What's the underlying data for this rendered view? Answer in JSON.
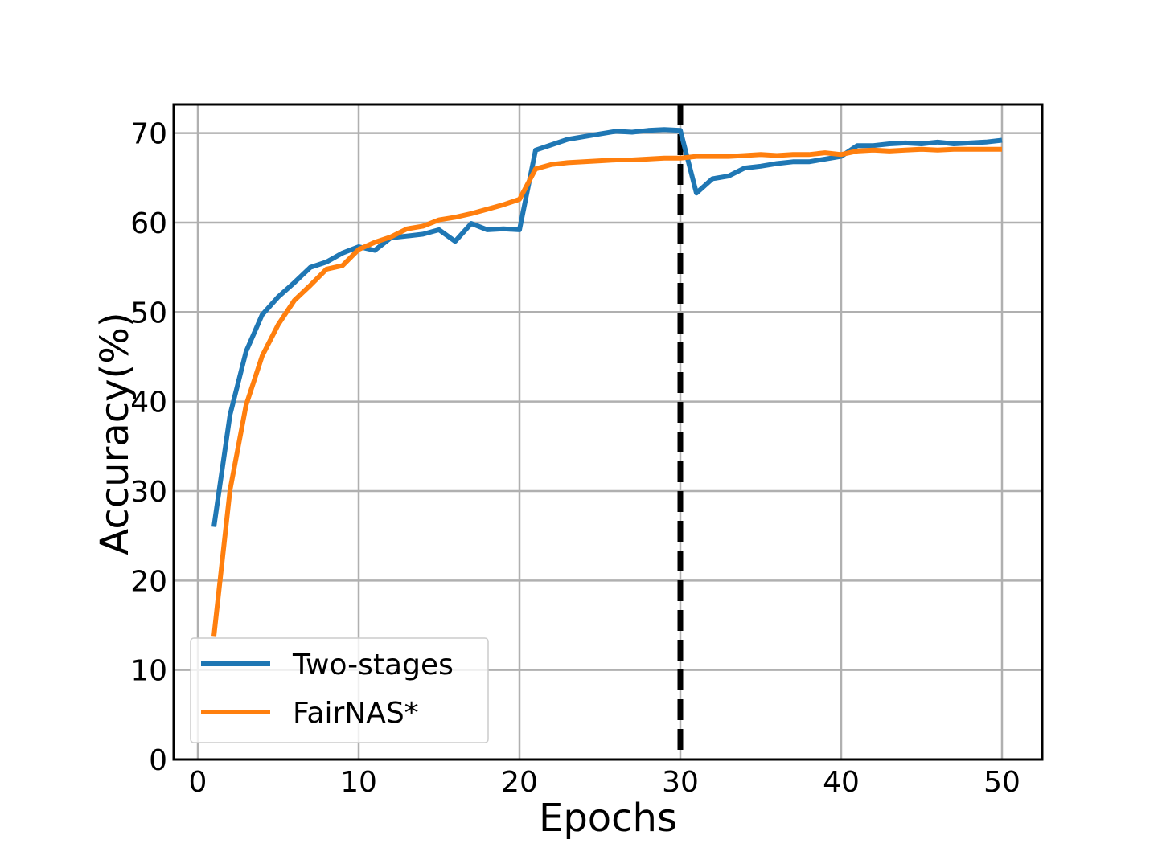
{
  "chart_data": {
    "type": "line",
    "title": "",
    "xlabel": "Epochs",
    "ylabel": "Accuracy(%)",
    "xlim": [
      -1.5,
      52.5
    ],
    "ylim": [
      0,
      73.2
    ],
    "xticks": [
      0,
      10,
      20,
      30,
      40,
      50
    ],
    "yticks": [
      0,
      10,
      20,
      30,
      40,
      50,
      60,
      70
    ],
    "grid": true,
    "legend_position": "lower-left",
    "vline": {
      "x": 30,
      "color": "#000000",
      "style": "dashed"
    },
    "series": [
      {
        "name": "Two-stages",
        "color": "#1f77b4",
        "x": [
          1,
          2,
          3,
          4,
          5,
          6,
          7,
          8,
          9,
          10,
          11,
          12,
          13,
          14,
          15,
          16,
          17,
          18,
          19,
          20,
          21,
          22,
          23,
          24,
          25,
          26,
          27,
          28,
          29,
          30,
          31,
          32,
          33,
          34,
          35,
          36,
          37,
          38,
          39,
          40,
          41,
          42,
          43,
          44,
          45,
          46,
          47,
          48,
          49,
          50
        ],
        "y": [
          26.0,
          38.5,
          45.6,
          49.7,
          51.7,
          53.3,
          55.0,
          55.6,
          56.6,
          57.3,
          56.9,
          58.3,
          58.5,
          58.7,
          59.2,
          57.9,
          59.9,
          59.2,
          59.3,
          59.2,
          68.1,
          68.7,
          69.3,
          69.6,
          69.9,
          70.2,
          70.1,
          70.3,
          70.4,
          70.3,
          63.3,
          64.9,
          65.2,
          66.1,
          66.3,
          66.6,
          66.8,
          66.8,
          67.1,
          67.4,
          68.6,
          68.6,
          68.8,
          68.9,
          68.8,
          69.0,
          68.8,
          68.9,
          69.0,
          69.2
        ]
      },
      {
        "name": "FairNAS*",
        "color": "#ff7f0e",
        "x": [
          1,
          2,
          3,
          4,
          5,
          6,
          7,
          8,
          9,
          10,
          11,
          12,
          13,
          14,
          15,
          16,
          17,
          18,
          19,
          20,
          21,
          22,
          23,
          24,
          25,
          26,
          27,
          28,
          29,
          30,
          31,
          32,
          33,
          34,
          35,
          36,
          37,
          38,
          39,
          40,
          41,
          42,
          43,
          44,
          45,
          46,
          47,
          48,
          49,
          50
        ],
        "y": [
          13.8,
          30.1,
          39.6,
          45.1,
          48.6,
          51.3,
          53.0,
          54.8,
          55.2,
          57.0,
          57.8,
          58.4,
          59.3,
          59.6,
          60.3,
          60.6,
          61.0,
          61.5,
          62.0,
          62.6,
          66.0,
          66.5,
          66.7,
          66.8,
          66.9,
          67.0,
          67.0,
          67.1,
          67.2,
          67.2,
          67.4,
          67.4,
          67.4,
          67.5,
          67.6,
          67.5,
          67.6,
          67.6,
          67.8,
          67.6,
          68.0,
          68.1,
          68.0,
          68.1,
          68.2,
          68.1,
          68.2,
          68.2,
          68.2,
          68.2
        ]
      }
    ]
  }
}
